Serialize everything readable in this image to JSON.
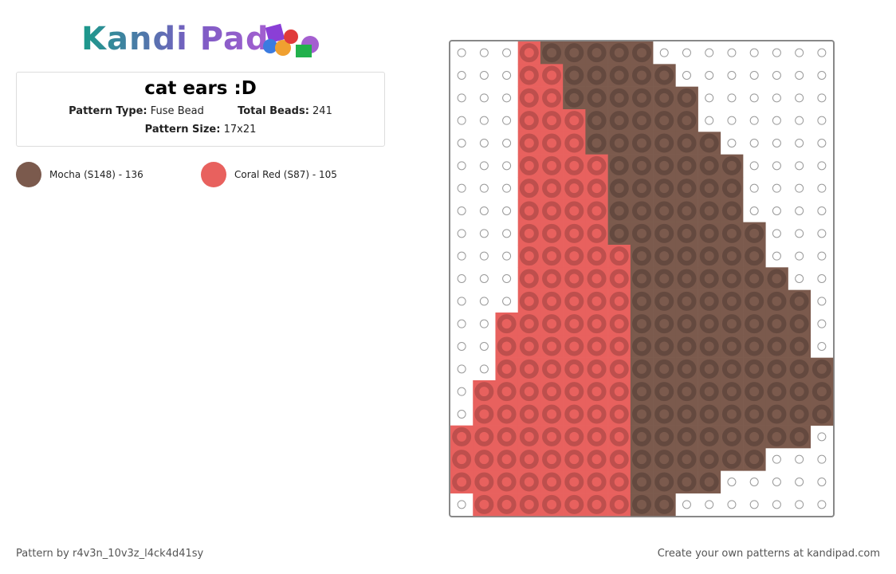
{
  "header": {
    "logo": "Kandi Pad",
    "title": "cat ears :D",
    "pattern_type_label": "Pattern Type:",
    "pattern_type": "Fuse Bead",
    "total_beads_label": "Total Beads:",
    "total_beads": "241",
    "pattern_size_label": "Pattern Size:",
    "pattern_size": "17x21"
  },
  "palette": [
    {
      "label": "Mocha (S148) - 136",
      "color": "#7b5a4d"
    },
    {
      "label": "Coral Red (S87) - 105",
      "color": "#e8615e"
    }
  ],
  "pattern": {
    "rows": [
      [
        null,
        null,
        null,
        1,
        0,
        0,
        0,
        0,
        0,
        null,
        null,
        null,
        null,
        null,
        null,
        null,
        null
      ],
      [
        null,
        null,
        null,
        1,
        1,
        0,
        0,
        0,
        0,
        0,
        null,
        null,
        null,
        null,
        null,
        null,
        null
      ],
      [
        null,
        null,
        null,
        1,
        1,
        0,
        0,
        0,
        0,
        0,
        0,
        null,
        null,
        null,
        null,
        null,
        null
      ],
      [
        null,
        null,
        null,
        1,
        1,
        1,
        0,
        0,
        0,
        0,
        0,
        null,
        null,
        null,
        null,
        null,
        null
      ],
      [
        null,
        null,
        null,
        1,
        1,
        1,
        0,
        0,
        0,
        0,
        0,
        0,
        null,
        null,
        null,
        null,
        null
      ],
      [
        null,
        null,
        null,
        1,
        1,
        1,
        1,
        0,
        0,
        0,
        0,
        0,
        0,
        null,
        null,
        null,
        null
      ],
      [
        null,
        null,
        null,
        1,
        1,
        1,
        1,
        0,
        0,
        0,
        0,
        0,
        0,
        null,
        null,
        null,
        null
      ],
      [
        null,
        null,
        null,
        1,
        1,
        1,
        1,
        0,
        0,
        0,
        0,
        0,
        0,
        null,
        null,
        null,
        null
      ],
      [
        null,
        null,
        null,
        1,
        1,
        1,
        1,
        0,
        0,
        0,
        0,
        0,
        0,
        0,
        null,
        null,
        null
      ],
      [
        null,
        null,
        null,
        1,
        1,
        1,
        1,
        1,
        0,
        0,
        0,
        0,
        0,
        0,
        null,
        null,
        null
      ],
      [
        null,
        null,
        null,
        1,
        1,
        1,
        1,
        1,
        0,
        0,
        0,
        0,
        0,
        0,
        0,
        null,
        null
      ],
      [
        null,
        null,
        null,
        1,
        1,
        1,
        1,
        1,
        0,
        0,
        0,
        0,
        0,
        0,
        0,
        0,
        null
      ],
      [
        null,
        null,
        1,
        1,
        1,
        1,
        1,
        1,
        0,
        0,
        0,
        0,
        0,
        0,
        0,
        0,
        null
      ],
      [
        null,
        null,
        1,
        1,
        1,
        1,
        1,
        1,
        0,
        0,
        0,
        0,
        0,
        0,
        0,
        0,
        null
      ],
      [
        null,
        null,
        1,
        1,
        1,
        1,
        1,
        1,
        0,
        0,
        0,
        0,
        0,
        0,
        0,
        0,
        0
      ],
      [
        null,
        1,
        1,
        1,
        1,
        1,
        1,
        1,
        0,
        0,
        0,
        0,
        0,
        0,
        0,
        0,
        0
      ],
      [
        null,
        1,
        1,
        1,
        1,
        1,
        1,
        1,
        0,
        0,
        0,
        0,
        0,
        0,
        0,
        0,
        0
      ],
      [
        1,
        1,
        1,
        1,
        1,
        1,
        1,
        1,
        0,
        0,
        0,
        0,
        0,
        0,
        0,
        0,
        null
      ],
      [
        1,
        1,
        1,
        1,
        1,
        1,
        1,
        1,
        0,
        0,
        0,
        0,
        0,
        0,
        null,
        null,
        null
      ],
      [
        1,
        1,
        1,
        1,
        1,
        1,
        1,
        1,
        0,
        0,
        0,
        0,
        null,
        null,
        null,
        null,
        null
      ],
      [
        null,
        1,
        1,
        1,
        1,
        1,
        1,
        1,
        0,
        0,
        null,
        null,
        null,
        null,
        null,
        null,
        null
      ]
    ]
  },
  "footer": {
    "credit": "Pattern by r4v3n_10v3z_l4ck4d41sy",
    "cta": "Create your own patterns at kandipad.com"
  }
}
